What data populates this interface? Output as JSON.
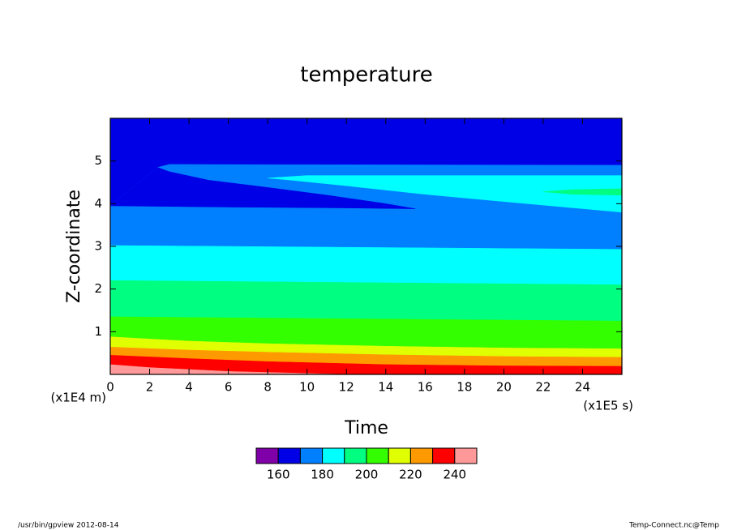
{
  "chart_data": {
    "type": "contour",
    "title": "temperature",
    "xlabel": "Time",
    "ylabel": "Z-coordinate",
    "xunit": "(x1E5 s)",
    "yunit": "(x1E4 m)",
    "xlim": [
      0,
      26
    ],
    "ylim": [
      0,
      6
    ],
    "xticks": [
      0,
      2,
      4,
      6,
      8,
      10,
      12,
      14,
      16,
      18,
      20,
      22,
      24
    ],
    "yticks": [
      1,
      2,
      3,
      4,
      5
    ],
    "colorbar": {
      "bounds": [
        150,
        160,
        170,
        180,
        190,
        200,
        210,
        220,
        230,
        240,
        250
      ],
      "colors": [
        "#7f00a8",
        "#0000e6",
        "#0080ff",
        "#00ffff",
        "#00ff80",
        "#33ff00",
        "#e0ff00",
        "#ff9900",
        "#ff0000",
        "#ff9999"
      ],
      "ticks": [
        160,
        180,
        200,
        220,
        240
      ]
    },
    "regions": [
      {
        "level": 160,
        "x": [
          0,
          26,
          26,
          0
        ],
        "z": [
          0,
          0,
          6,
          6
        ]
      },
      {
        "level": 170,
        "x": [
          0,
          26,
          26,
          3,
          2.4,
          0
        ],
        "z": [
          0,
          0,
          4.9,
          4.92,
          4.85,
          3.95
        ]
      },
      {
        "level": 160,
        "x": [
          0,
          2.4,
          3,
          5,
          8,
          11,
          14,
          15.5,
          12,
          6,
          0
        ],
        "z": [
          3.95,
          4.85,
          4.75,
          4.55,
          4.38,
          4.2,
          4.0,
          3.88,
          3.9,
          3.92,
          3.95
        ]
      },
      {
        "level": 180,
        "x": [
          0,
          26,
          26,
          0
        ],
        "z": [
          0,
          0,
          2.93,
          3.02
        ]
      },
      {
        "level": 180,
        "x": [
          8,
          10,
          26,
          26,
          20,
          16,
          12,
          9
        ],
        "z": [
          4.6,
          4.66,
          4.66,
          3.8,
          4.05,
          4.22,
          4.42,
          4.56
        ]
      },
      {
        "level": 190,
        "x": [
          22,
          23.5,
          26,
          26,
          23.5
        ],
        "z": [
          4.28,
          4.33,
          4.35,
          4.2,
          4.22
        ]
      },
      {
        "level": 190,
        "x": [
          0,
          26,
          26,
          0
        ],
        "z": [
          0,
          0,
          2.1,
          2.2
        ]
      },
      {
        "level": 200,
        "x": [
          0,
          26,
          26,
          0
        ],
        "z": [
          0,
          0,
          1.25,
          1.35
        ]
      },
      {
        "level": 210,
        "x": [
          0,
          26,
          26,
          20,
          14,
          8,
          4,
          0
        ],
        "z": [
          0,
          0,
          0.6,
          0.62,
          0.66,
          0.72,
          0.78,
          0.88
        ]
      },
      {
        "level": 220,
        "x": [
          0,
          26,
          26,
          20,
          14,
          8,
          4,
          0
        ],
        "z": [
          0,
          0,
          0.4,
          0.42,
          0.46,
          0.52,
          0.57,
          0.64
        ]
      },
      {
        "level": 230,
        "x": [
          0,
          26,
          26,
          20,
          14,
          8,
          4,
          0
        ],
        "z": [
          0,
          0,
          0.19,
          0.2,
          0.23,
          0.3,
          0.37,
          0.45
        ]
      },
      {
        "level": 240,
        "x": [
          0,
          12,
          6,
          2,
          0
        ],
        "z": [
          0,
          0,
          0.07,
          0.16,
          0.23
        ]
      }
    ],
    "footer_left": "/usr/bin/gpview  2012-08-14",
    "footer_right": "Temp-Connect.nc@Temp"
  }
}
